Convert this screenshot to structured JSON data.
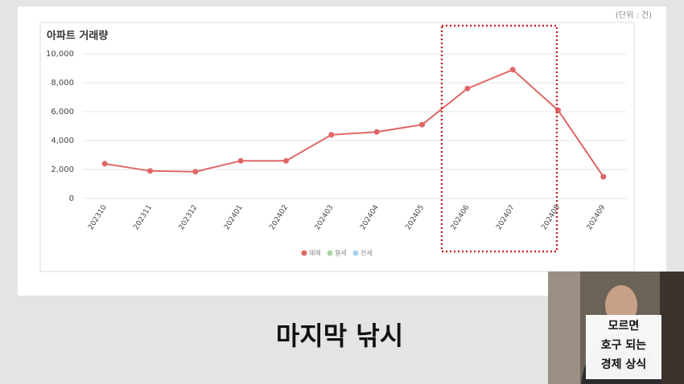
{
  "unit_note": "(단위 : 건)",
  "caption": "마지막 낚시",
  "overlay_text": [
    "모르면",
    "호구 되는",
    "경제 상식"
  ],
  "chart_data": {
    "type": "line",
    "title": "아파트 거래량",
    "categories": [
      "202310",
      "202311",
      "202312",
      "202401",
      "202402",
      "202403",
      "202404",
      "202405",
      "202406",
      "202407",
      "202408",
      "202409"
    ],
    "series": [
      {
        "name": "매매",
        "color": "#e06666",
        "values": [
          2400,
          1900,
          1850,
          2600,
          2600,
          4400,
          4600,
          5100,
          7600,
          8900,
          6100,
          1500
        ]
      },
      {
        "name": "월세",
        "color": "#a8d5a0",
        "values": [
          null,
          null,
          null,
          null,
          null,
          null,
          null,
          null,
          null,
          null,
          null,
          null
        ]
      },
      {
        "name": "전세",
        "color": "#a9d0ee",
        "values": [
          null,
          null,
          null,
          null,
          null,
          null,
          null,
          null,
          null,
          null,
          null,
          null
        ]
      }
    ],
    "ylim": [
      0,
      10000
    ],
    "yticks": [
      0,
      {
        "value": 2000,
        "label": "2,000"
      },
      {
        "value": 4000,
        "label": "4,000"
      },
      {
        "value": 6000,
        "label": "6,000"
      },
      {
        "value": 8000,
        "label": "8,000"
      },
      {
        "value": 10000,
        "label": "10,000"
      }
    ],
    "grid": true
  }
}
